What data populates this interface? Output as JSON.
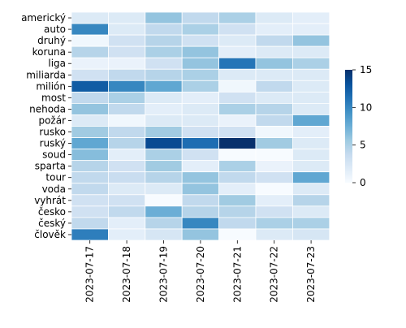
{
  "chart_data": {
    "type": "heatmap",
    "title": "",
    "xlabel": "",
    "ylabel": "",
    "rows": [
      "americký",
      "auto",
      "druhý",
      "koruna",
      "liga",
      "miliarda",
      "milión",
      "most",
      "nehoda",
      "požár",
      "rusko",
      "ruský",
      "soud",
      "sparta",
      "tour",
      "voda",
      "vyhrát",
      "česko",
      "český",
      "člověk"
    ],
    "columns": [
      "2023-07-17",
      "2023-07-18",
      "2023-07-19",
      "2023-07-20",
      "2023-07-21",
      "2023-07-22",
      "2023-07-23"
    ],
    "values": [
      [
        2,
        2,
        6,
        4,
        5,
        2,
        1.5
      ],
      [
        10,
        2,
        4,
        5,
        3,
        1.5,
        1.5
      ],
      [
        0.5,
        3,
        4.5,
        3,
        2,
        4,
        6
      ],
      [
        4.5,
        3,
        5,
        6,
        1.5,
        2,
        2
      ],
      [
        1,
        1,
        3,
        6,
        11,
        6,
        5
      ],
      [
        3,
        4,
        4.5,
        5,
        2,
        2,
        2
      ],
      [
        12.5,
        10,
        8,
        5,
        0.5,
        4,
        2
      ],
      [
        4,
        5,
        2,
        1.5,
        3,
        2,
        2
      ],
      [
        6,
        4,
        1.5,
        2,
        5,
        4.5,
        2
      ],
      [
        2,
        0.5,
        2,
        2,
        1,
        4,
        8
      ],
      [
        5.5,
        4,
        5.5,
        3,
        3,
        0.5,
        1.5
      ],
      [
        8,
        4.5,
        13.5,
        11.5,
        15,
        5.5,
        2
      ],
      [
        6.5,
        1.5,
        5,
        3,
        0,
        0,
        2
      ],
      [
        4.5,
        3,
        5.5,
        1.5,
        5,
        1,
        2
      ],
      [
        4,
        3.5,
        4.5,
        6,
        4,
        3,
        8
      ],
      [
        4,
        2,
        2,
        6,
        1.5,
        0,
        2
      ],
      [
        3,
        3,
        0,
        4,
        5.5,
        1.5,
        4.5
      ],
      [
        3,
        4,
        7.5,
        4.5,
        4.5,
        3,
        2
      ],
      [
        4,
        1.5,
        4.5,
        10,
        4,
        5,
        5
      ],
      [
        10.5,
        1.5,
        2.5,
        6,
        0,
        2,
        2.5
      ]
    ],
    "colorbar": {
      "min": 0,
      "max": 15,
      "ticks": [
        0,
        5,
        10,
        15
      ]
    },
    "colormap": [
      "#f7fbff",
      "#deebf7",
      "#c6dbef",
      "#9ecae1",
      "#6baed6",
      "#4292c6",
      "#2171b5",
      "#08519c",
      "#08306b"
    ]
  }
}
